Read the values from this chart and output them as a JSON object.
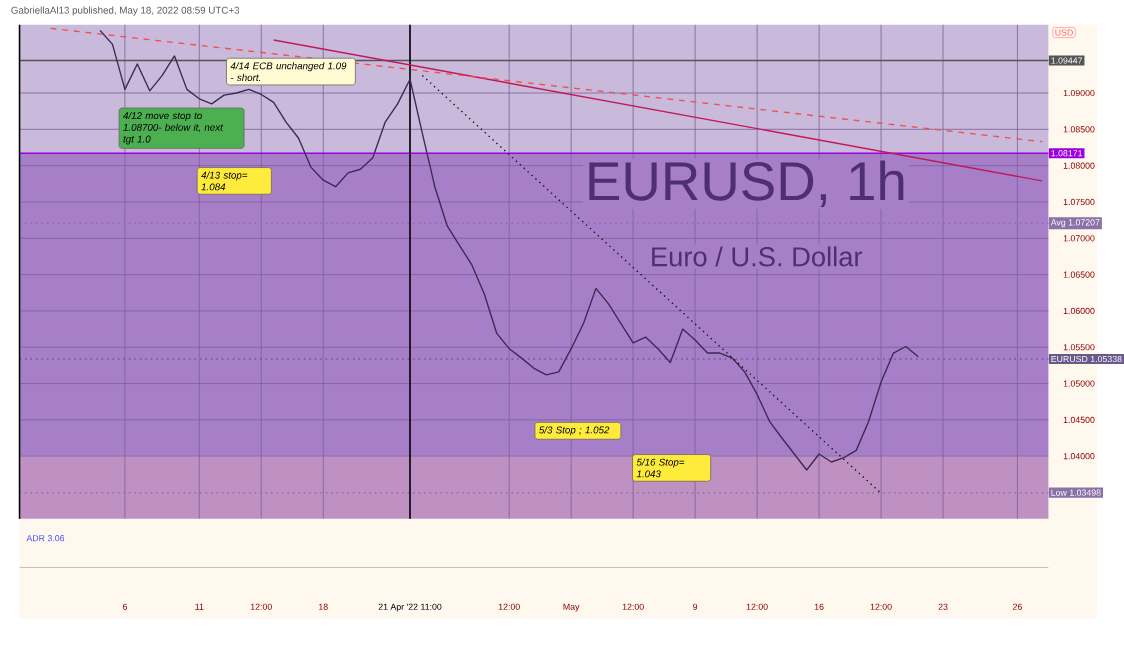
{
  "chart_data": {
    "type": "line",
    "title": "EURUSD, 1h",
    "subtitle": "Euro / U.S. Dollar",
    "categories": [
      null,
      null,
      null,
      null,
      null,
      null,
      null,
      null,
      "6",
      null,
      null,
      null,
      null,
      null,
      "11",
      null,
      null,
      null,
      null,
      "12:00",
      null,
      null,
      null,
      null,
      "18",
      null,
      null,
      null,
      null,
      null,
      null,
      "21 Apr '22  11:00",
      null,
      null,
      null,
      null,
      null,
      null,
      null,
      "12:00",
      null,
      null,
      null,
      null,
      "May",
      null,
      null,
      null,
      null,
      "12:00",
      null,
      null,
      null,
      null,
      "9",
      null,
      null,
      null,
      null,
      "12:00",
      null,
      null,
      null,
      null,
      "16",
      null,
      null,
      null,
      null,
      "12:00",
      null,
      null,
      null,
      null,
      "23",
      null,
      null,
      null,
      null,
      null,
      "26",
      null,
      null
    ],
    "series": [
      {
        "color": "#3b2a55",
        "values": [
          null,
          null,
          null,
          null,
          null,
          null,
          1.0986,
          1.0967,
          1.0905,
          1.094,
          1.0903,
          1.0924,
          1.0951,
          1.0905,
          1.0892,
          1.0885,
          1.0897,
          1.09,
          1.0905,
          1.0898,
          1.0887,
          1.086,
          1.0838,
          1.0798,
          1.078,
          1.0771,
          1.079,
          1.0795,
          1.0811,
          1.086,
          1.0885,
          1.0919,
          1.0844,
          1.0771,
          1.0717,
          1.069,
          1.0663,
          1.0623,
          1.0569,
          1.0548,
          1.0535,
          1.0521,
          1.0512,
          1.0516,
          1.0548,
          1.0583,
          1.0631,
          1.061,
          1.0583,
          1.0556,
          1.0564,
          1.0548,
          1.0529,
          1.0575,
          1.056,
          1.0542,
          1.0542,
          1.0535,
          1.0516,
          1.0485,
          1.0448,
          1.0425,
          1.0403,
          1.0381,
          1.0403,
          1.0392,
          1.0398,
          1.0408,
          1.0448,
          1.0502,
          1.0542,
          1.0551,
          1.0537,
          null,
          null,
          null,
          null,
          null,
          null,
          null,
          null,
          null,
          null
        ]
      },
      {
        "color": "#c2185b",
        "values": [
          null,
          null,
          null,
          null,
          null,
          null,
          null,
          null,
          null,
          null,
          null,
          null,
          null,
          null,
          null,
          null,
          null,
          null,
          null,
          null,
          1.0973,
          null,
          null,
          null,
          null,
          null,
          null,
          null,
          null,
          null,
          null,
          null,
          null,
          null,
          null,
          null,
          null,
          null,
          null,
          null,
          null,
          null,
          null,
          null,
          null,
          null,
          null,
          null,
          null,
          null,
          null,
          null,
          null,
          null,
          null,
          null,
          null,
          null,
          null,
          null,
          null,
          null,
          null,
          null,
          null,
          null,
          null,
          null,
          null,
          null,
          null,
          null,
          null,
          null,
          null,
          null,
          null,
          null,
          null,
          null,
          null,
          null,
          1.0779
        ]
      },
      {
        "color": "#f05050",
        "line_style": "dashed",
        "values": [
          null,
          null,
          1.0989,
          null,
          null,
          null,
          null,
          null,
          null,
          null,
          null,
          null,
          null,
          null,
          null,
          null,
          null,
          null,
          null,
          null,
          null,
          null,
          null,
          null,
          null,
          null,
          null,
          null,
          null,
          null,
          null,
          null,
          null,
          null,
          null,
          null,
          null,
          null,
          null,
          null,
          null,
          null,
          null,
          null,
          null,
          null,
          null,
          null,
          null,
          null,
          null,
          null,
          null,
          null,
          null,
          null,
          null,
          null,
          null,
          null,
          null,
          null,
          null,
          null,
          null,
          null,
          null,
          null,
          null,
          null,
          null,
          null,
          null,
          null,
          null,
          null,
          null,
          null,
          null,
          null,
          null,
          null,
          1.0833
        ]
      },
      {
        "color": "#111111",
        "line_style": "dotted",
        "values": [
          null,
          null,
          null,
          null,
          null,
          null,
          null,
          null,
          null,
          null,
          null,
          null,
          null,
          null,
          null,
          null,
          null,
          null,
          null,
          null,
          null,
          null,
          null,
          null,
          null,
          null,
          null,
          null,
          null,
          null,
          null,
          null,
          1.0924,
          null,
          null,
          null,
          null,
          null,
          null,
          null,
          null,
          null,
          null,
          null,
          null,
          null,
          null,
          null,
          null,
          null,
          null,
          null,
          null,
          null,
          null,
          null,
          null,
          null,
          null,
          null,
          null,
          null,
          null,
          null,
          null,
          null,
          null,
          null,
          null,
          1.0349,
          null,
          null,
          null,
          null,
          null,
          null,
          null,
          null,
          null,
          null,
          null,
          null,
          null
        ]
      }
    ],
    "ylim": [
      1.0314,
      1.0994
    ],
    "yticks": [
      {
        "value": 1.04,
        "label": "1.04000"
      },
      {
        "value": 1.045,
        "label": "1.04500"
      },
      {
        "value": 1.05,
        "label": "1.05000"
      },
      {
        "value": 1.055,
        "label": "1.05500"
      },
      {
        "value": 1.06,
        "label": "1.06000"
      },
      {
        "value": 1.065,
        "label": "1.06500"
      },
      {
        "value": 1.07,
        "label": "1.07000"
      },
      {
        "value": 1.075,
        "label": "1.07500"
      },
      {
        "value": 1.08,
        "label": "1.08000"
      },
      {
        "value": 1.085,
        "label": "1.08500"
      },
      {
        "value": 1.09,
        "label": "1.09000"
      }
    ],
    "grid": true,
    "bands": [
      {
        "axis": "y",
        "from": 1.08171,
        "to": 1.0994,
        "color": "#c9b9da"
      },
      {
        "axis": "y",
        "from": 1.04,
        "to": 1.08171,
        "color": "#a77fc9"
      },
      {
        "axis": "y",
        "from": 1.0314,
        "to": 1.04,
        "color": "#bf90c2"
      }
    ],
    "ref_lines": [
      {
        "axis": "y",
        "value": 1.09447,
        "label": "1.09447",
        "color": "#555555"
      },
      {
        "axis": "y",
        "value": 1.08171,
        "label": "1.08171",
        "color": "#9b00e0"
      },
      {
        "axis": "y",
        "value": 1.07207,
        "label": "Avg 1.07207",
        "color": "#8a72a8",
        "line_style": "dotted"
      },
      {
        "axis": "y",
        "value": 1.05338,
        "label": "EURUSD 1.05338",
        "color": "#6a5a8a",
        "line_style": "dotted"
      },
      {
        "axis": "y",
        "value": 1.03498,
        "label": "Low 1.03498",
        "color": "#8a72a8",
        "line_style": "dotted"
      },
      {
        "axis": "x",
        "value": "21 Apr '22  11:00",
        "color": "#000000"
      }
    ],
    "annotations": [
      "GabriellaAl13 published, May 18, 2022 08:59 UTC+3",
      "USD",
      "ADR 3.06",
      "4/14 ECB unchanged 1.09 - short.",
      "4/12 move stop to 1.08700- below it, next tgt 1.0",
      "4/13 stop= 1.084",
      "5/3 Stop ; 1.052",
      "5/16 Stop= 1.043"
    ]
  }
}
